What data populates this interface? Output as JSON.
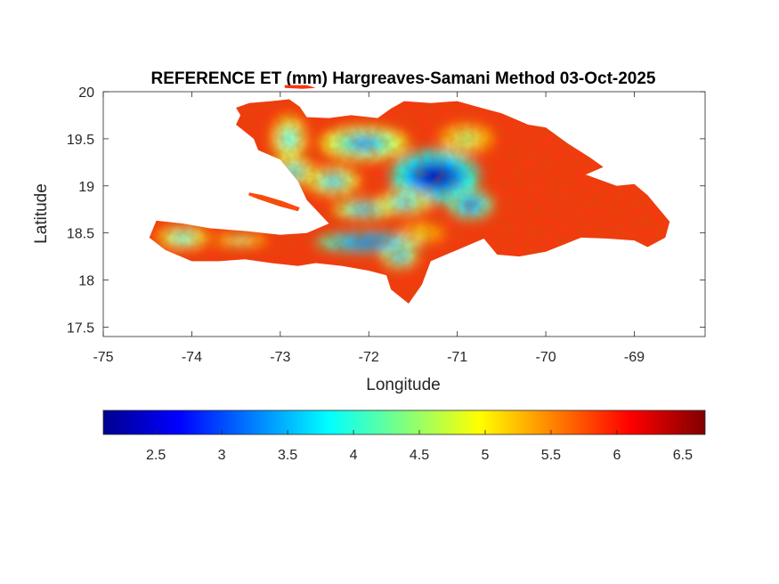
{
  "title": "REFERENCE ET (mm) Hargreaves-Samani Method  03-Oct-2025",
  "map": {
    "xlabel": "Longitude",
    "ylabel": "Latitude",
    "xlim": [
      -75,
      -68.2
    ],
    "ylim": [
      17.4,
      20
    ],
    "xticks": [
      "-75",
      "-74",
      "-73",
      "-72",
      "-71",
      "-70",
      "-69"
    ],
    "xtick_values": [
      -75,
      -74,
      -73,
      -72,
      -71,
      -70,
      -69
    ],
    "yticks": [
      "20",
      "19.5",
      "19",
      "18.5",
      "18",
      "17.5"
    ],
    "ytick_values": [
      20,
      19.5,
      19,
      18.5,
      18,
      17.5
    ],
    "region": "Hispaniola",
    "coast_lonlat": [
      [
        -73.5,
        19.83
      ],
      [
        -73.35,
        19.88
      ],
      [
        -73.1,
        19.9
      ],
      [
        -72.9,
        19.92
      ],
      [
        -72.78,
        19.84
      ],
      [
        -72.7,
        19.73
      ],
      [
        -72.45,
        19.72
      ],
      [
        -72.2,
        19.75
      ],
      [
        -71.9,
        19.72
      ],
      [
        -71.75,
        19.82
      ],
      [
        -71.6,
        19.9
      ],
      [
        -71.3,
        19.88
      ],
      [
        -71.0,
        19.9
      ],
      [
        -70.7,
        19.82
      ],
      [
        -70.5,
        19.77
      ],
      [
        -70.2,
        19.65
      ],
      [
        -70.0,
        19.62
      ],
      [
        -69.75,
        19.45
      ],
      [
        -69.5,
        19.3
      ],
      [
        -69.35,
        19.2
      ],
      [
        -69.55,
        19.12
      ],
      [
        -69.2,
        19.0
      ],
      [
        -69.0,
        19.02
      ],
      [
        -68.85,
        18.9
      ],
      [
        -68.6,
        18.62
      ],
      [
        -68.65,
        18.45
      ],
      [
        -68.85,
        18.35
      ],
      [
        -69.0,
        18.42
      ],
      [
        -69.3,
        18.44
      ],
      [
        -69.6,
        18.45
      ],
      [
        -70.0,
        18.3
      ],
      [
        -70.3,
        18.25
      ],
      [
        -70.55,
        18.27
      ],
      [
        -70.7,
        18.44
      ],
      [
        -70.9,
        18.36
      ],
      [
        -71.1,
        18.28
      ],
      [
        -71.3,
        18.2
      ],
      [
        -71.4,
        17.95
      ],
      [
        -71.55,
        17.75
      ],
      [
        -71.75,
        17.9
      ],
      [
        -71.8,
        18.05
      ],
      [
        -72.0,
        18.1
      ],
      [
        -72.3,
        18.15
      ],
      [
        -72.6,
        18.18
      ],
      [
        -72.8,
        18.15
      ],
      [
        -73.1,
        18.18
      ],
      [
        -73.4,
        18.22
      ],
      [
        -73.7,
        18.2
      ],
      [
        -74.0,
        18.2
      ],
      [
        -74.3,
        18.32
      ],
      [
        -74.48,
        18.45
      ],
      [
        -74.4,
        18.63
      ],
      [
        -74.1,
        18.6
      ],
      [
        -73.8,
        18.55
      ],
      [
        -73.4,
        18.52
      ],
      [
        -73.0,
        18.48
      ],
      [
        -72.7,
        18.5
      ],
      [
        -72.45,
        18.6
      ],
      [
        -72.7,
        18.85
      ],
      [
        -72.8,
        19.05
      ],
      [
        -73.0,
        19.28
      ],
      [
        -73.25,
        19.38
      ],
      [
        -73.3,
        19.5
      ],
      [
        -73.5,
        19.65
      ],
      [
        -73.45,
        19.75
      ]
    ],
    "gonave_lonlat": [
      [
        -73.35,
        18.93
      ],
      [
        -73.2,
        18.9
      ],
      [
        -72.98,
        18.84
      ],
      [
        -72.78,
        18.77
      ],
      [
        -72.8,
        18.73
      ],
      [
        -73.0,
        18.78
      ],
      [
        -73.25,
        18.86
      ],
      [
        -73.36,
        18.9
      ]
    ],
    "tortuga_lonlat": [
      [
        -72.95,
        20.07
      ],
      [
        -72.7,
        20.07
      ],
      [
        -72.6,
        20.04
      ],
      [
        -72.75,
        20.03
      ],
      [
        -72.95,
        20.04
      ]
    ],
    "low_zones": [
      {
        "lon": -71.25,
        "lat": 19.1,
        "rlon": 0.5,
        "rlat": 0.28,
        "value": 2.4
      },
      {
        "lon": -70.85,
        "lat": 18.8,
        "rlon": 0.25,
        "rlat": 0.15,
        "value": 2.8
      },
      {
        "lon": -72.05,
        "lat": 18.75,
        "rlon": 0.35,
        "rlat": 0.1,
        "value": 3.2
      },
      {
        "lon": -71.6,
        "lat": 18.82,
        "rlon": 0.3,
        "rlat": 0.12,
        "value": 3.4
      },
      {
        "lon": -72.4,
        "lat": 19.05,
        "rlon": 0.3,
        "rlat": 0.15,
        "value": 3.5
      },
      {
        "lon": -72.85,
        "lat": 19.15,
        "rlon": 0.25,
        "rlat": 0.15,
        "value": 3.6
      },
      {
        "lon": -72.05,
        "lat": 19.45,
        "rlon": 0.5,
        "rlat": 0.18,
        "value": 3.3
      },
      {
        "lon": -72.9,
        "lat": 19.5,
        "rlon": 0.2,
        "rlat": 0.25,
        "value": 3.8
      },
      {
        "lon": -72.0,
        "lat": 18.4,
        "rlon": 0.6,
        "rlat": 0.1,
        "value": 2.6
      },
      {
        "lon": -71.65,
        "lat": 18.25,
        "rlon": 0.2,
        "rlat": 0.12,
        "value": 3.2
      },
      {
        "lon": -74.1,
        "lat": 18.45,
        "rlon": 0.3,
        "rlat": 0.12,
        "value": 3.8
      },
      {
        "lon": -73.45,
        "lat": 18.42,
        "rlon": 0.3,
        "rlat": 0.06,
        "value": 4.2
      },
      {
        "lon": -70.9,
        "lat": 19.5,
        "rlon": 0.3,
        "rlat": 0.15,
        "value": 4.4
      },
      {
        "lon": -71.4,
        "lat": 18.5,
        "rlon": 0.25,
        "rlat": 0.1,
        "value": 4.8
      }
    ]
  },
  "colorbar": {
    "min": 2.1,
    "max": 6.67,
    "ticks": [
      "2.5",
      "3",
      "3.5",
      "4",
      "4.5",
      "5",
      "5.5",
      "6",
      "6.5"
    ],
    "tick_values": [
      2.5,
      3,
      3.5,
      4,
      4.5,
      5,
      5.5,
      6,
      6.5
    ],
    "colormap": "jet"
  }
}
